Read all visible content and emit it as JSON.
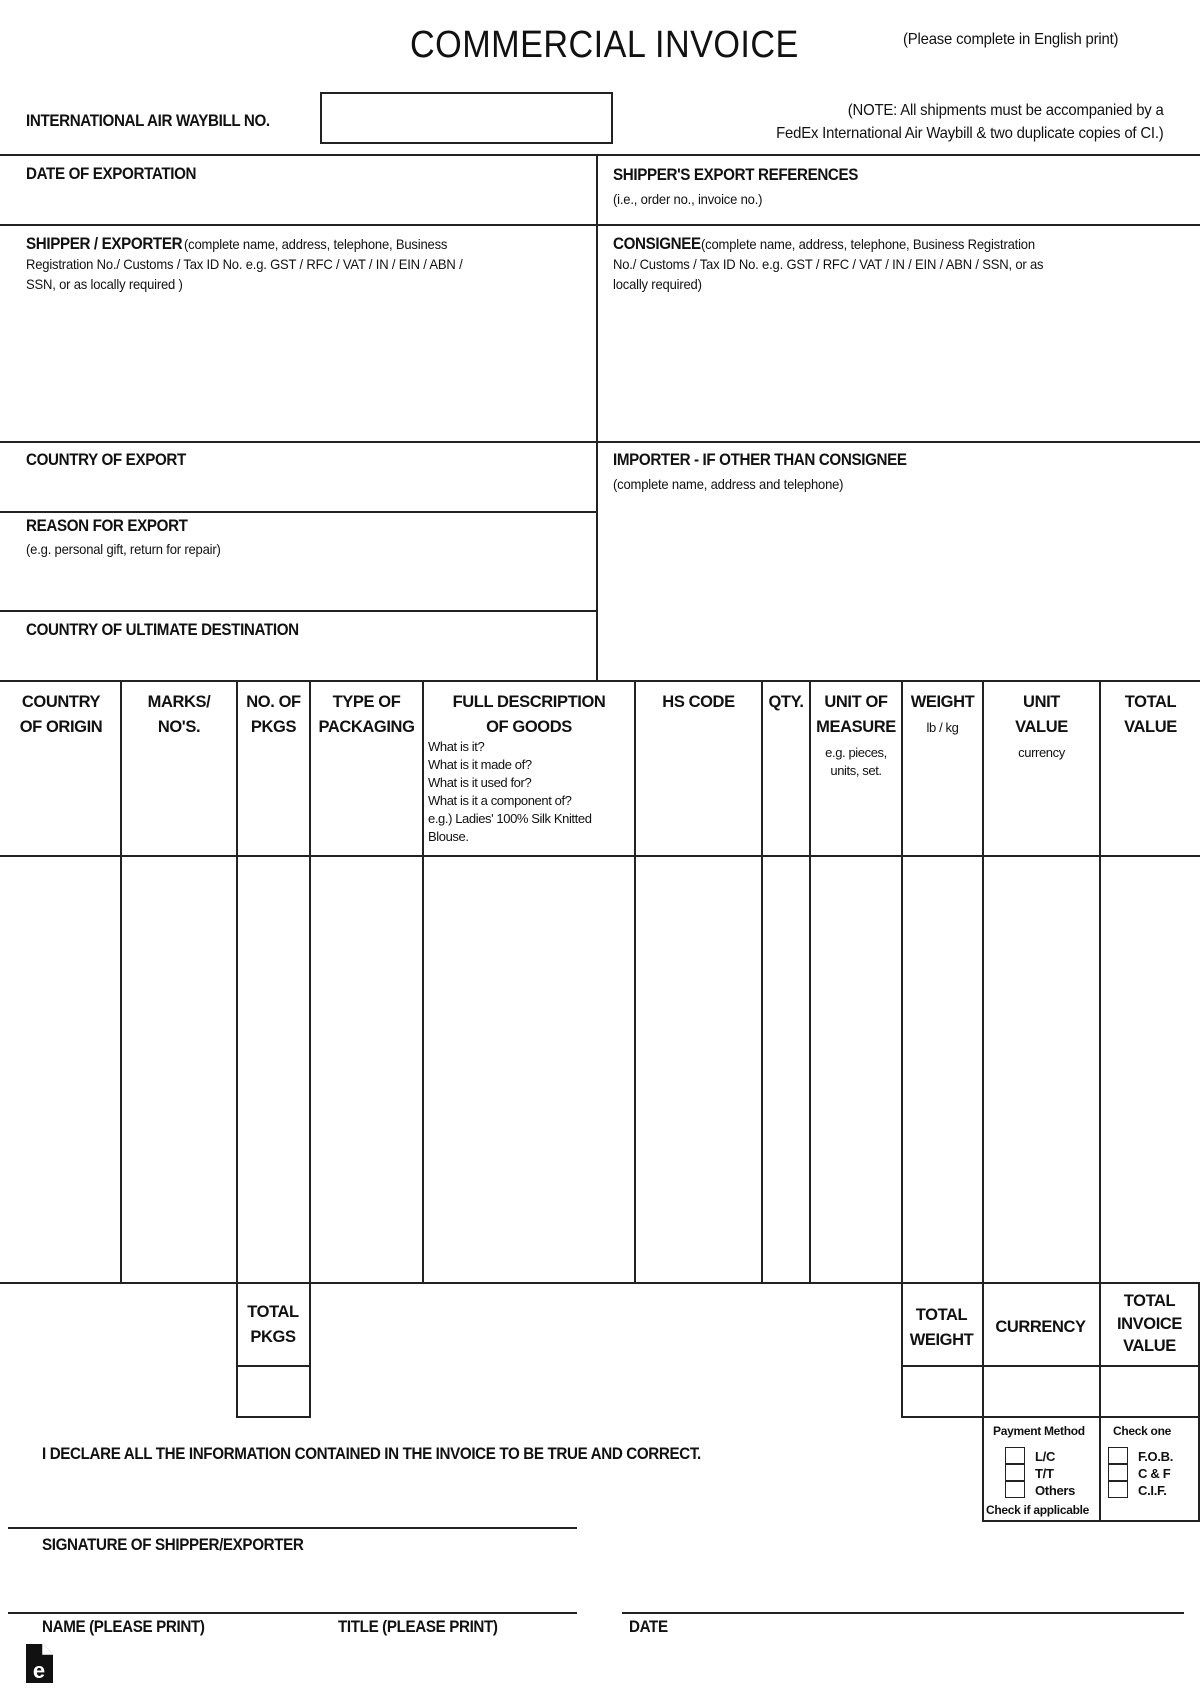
{
  "header": {
    "title": "COMMERCIAL INVOICE",
    "instruction": "(Please complete in English print)",
    "waybill_label": "INTERNATIONAL AIR WAYBILL NO.",
    "waybill_value": "",
    "note_line1": "(NOTE: All shipments must be accompanied by a",
    "note_line2": "FedEx International Air Waybill & two duplicate copies of CI.)"
  },
  "fields": {
    "date_of_exportation": "DATE OF EXPORTATION",
    "shipper_refs": "SHIPPER'S EXPORT REFERENCES",
    "shipper_refs_sub": "(i.e., order no., invoice no.)",
    "shipper": "SHIPPER / EXPORTER",
    "shipper_sub1": "(complete name, address, telephone, Business",
    "shipper_sub2": "Registration No./ Customs / Tax ID No. e.g. GST / RFC / VAT / IN / EIN / ABN /",
    "shipper_sub3": "SSN, or as locally required )",
    "consignee": "CONSIGNEE",
    "consignee_sub1": "(complete name, address, telephone, Business Registration",
    "consignee_sub2": "No./ Customs / Tax ID No. e.g. GST / RFC / VAT / IN / EIN / ABN / SSN, or as",
    "consignee_sub3": "locally required)",
    "country_of_export": "COUNTRY OF EXPORT",
    "importer": "IMPORTER - IF OTHER THAN CONSIGNEE",
    "importer_sub": "(complete name, address and telephone)",
    "reason": "REASON FOR EXPORT",
    "reason_sub": "(e.g. personal gift, return for repair)",
    "destination": "COUNTRY OF ULTIMATE DESTINATION"
  },
  "table": {
    "columns": [
      {
        "l1": "COUNTRY",
        "l2": "OF ORIGIN"
      },
      {
        "l1": "MARKS/",
        "l2": "NO'S."
      },
      {
        "l1": "NO. OF",
        "l2": "PKGS"
      },
      {
        "l1": "TYPE OF",
        "l2": "PACKAGING"
      },
      {
        "l1": "FULL DESCRIPTION",
        "l2": "OF GOODS",
        "sub": [
          "What is it?",
          "What is it made of?",
          "What is it used for?",
          "What is it a component of?",
          "e.g.) Ladies' 100% Silk Knitted",
          "Blouse."
        ]
      },
      {
        "l1": "HS CODE"
      },
      {
        "l1": "QTY."
      },
      {
        "l1": "UNIT OF",
        "l2": "MEASURE",
        "sub": [
          "e.g. pieces,",
          "units, set."
        ]
      },
      {
        "l1": "WEIGHT",
        "sub": [
          "lb / kg"
        ]
      },
      {
        "l1": "UNIT",
        "l2": "VALUE",
        "sub": [
          "currency"
        ]
      },
      {
        "l1": "TOTAL",
        "l2": "VALUE"
      }
    ]
  },
  "totals": {
    "pkgs_l1": "TOTAL",
    "pkgs_l2": "PKGS",
    "weight_l1": "TOTAL",
    "weight_l2": "WEIGHT",
    "currency": "CURRENCY",
    "invoice_l1": "TOTAL",
    "invoice_l2": "INVOICE",
    "invoice_l3": "VALUE"
  },
  "payment": {
    "title": "Payment Method",
    "options": [
      "L/C",
      "T/T",
      "Others"
    ],
    "footer": "Check if applicable"
  },
  "terms": {
    "title": "Check one",
    "options": [
      "F.O.B.",
      "C & F",
      "C.I.F."
    ]
  },
  "footer": {
    "declaration": "I DECLARE ALL THE INFORMATION CONTAINED IN THE INVOICE TO BE TRUE AND CORRECT.",
    "signature": "SIGNATURE OF SHIPPER/EXPORTER",
    "name": "NAME (PLEASE PRINT)",
    "title": "TITLE (PLEASE PRINT)",
    "date": "DATE"
  },
  "logo": {
    "icon": "document-e-icon",
    "letter": "e"
  }
}
